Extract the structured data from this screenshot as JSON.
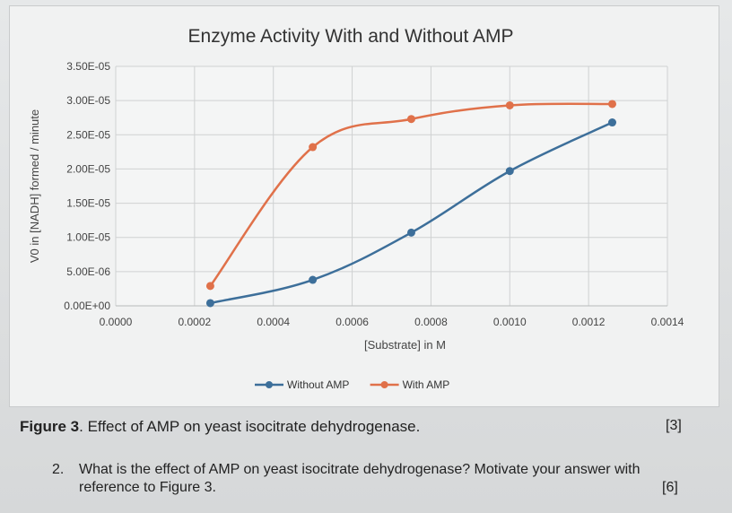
{
  "chart_data": {
    "type": "line",
    "title": "Enzyme Activity With and Without AMP",
    "xlabel": "[Substrate] in M",
    "ylabel": "V0 in [NADH] formed / minute",
    "xlim": [
      0,
      0.0014
    ],
    "ylim": [
      0,
      3.5e-05
    ],
    "x_tick_labels": [
      "0.0000",
      "0.0002",
      "0.0004",
      "0.0006",
      "0.0008",
      "0.0010",
      "0.0012",
      "0.0014"
    ],
    "y_tick_labels": [
      "0.00E+00",
      "5.00E-06",
      "1.00E-05",
      "1.50E-05",
      "2.00E-05",
      "2.50E-05",
      "3.00E-05",
      "3.50E-05"
    ],
    "grid": true,
    "legend_position": "bottom",
    "series": [
      {
        "name": "Without AMP",
        "color": "#3d6f9a",
        "points": [
          [
            0.00024,
            4e-07
          ],
          [
            0.0005,
            3.8e-06
          ],
          [
            0.00075,
            1.07e-05
          ],
          [
            0.001,
            1.97e-05
          ],
          [
            0.00126,
            2.68e-05
          ]
        ]
      },
      {
        "name": "With AMP",
        "color": "#e0714a",
        "points": [
          [
            0.00024,
            2.9e-06
          ],
          [
            0.0005,
            2.32e-05
          ],
          [
            0.00075,
            2.73e-05
          ],
          [
            0.001,
            2.93e-05
          ],
          [
            0.00126,
            2.95e-05
          ]
        ]
      }
    ]
  },
  "caption": {
    "label": "Figure 3",
    "text": ". Effect of AMP on yeast isocitrate dehydrogenase.",
    "marks": "[3]"
  },
  "question": {
    "number": "2.",
    "text": "What is the effect of AMP on yeast isocitrate dehydrogenase? Motivate your answer with reference to Figure 3.",
    "marks": "[6]"
  }
}
